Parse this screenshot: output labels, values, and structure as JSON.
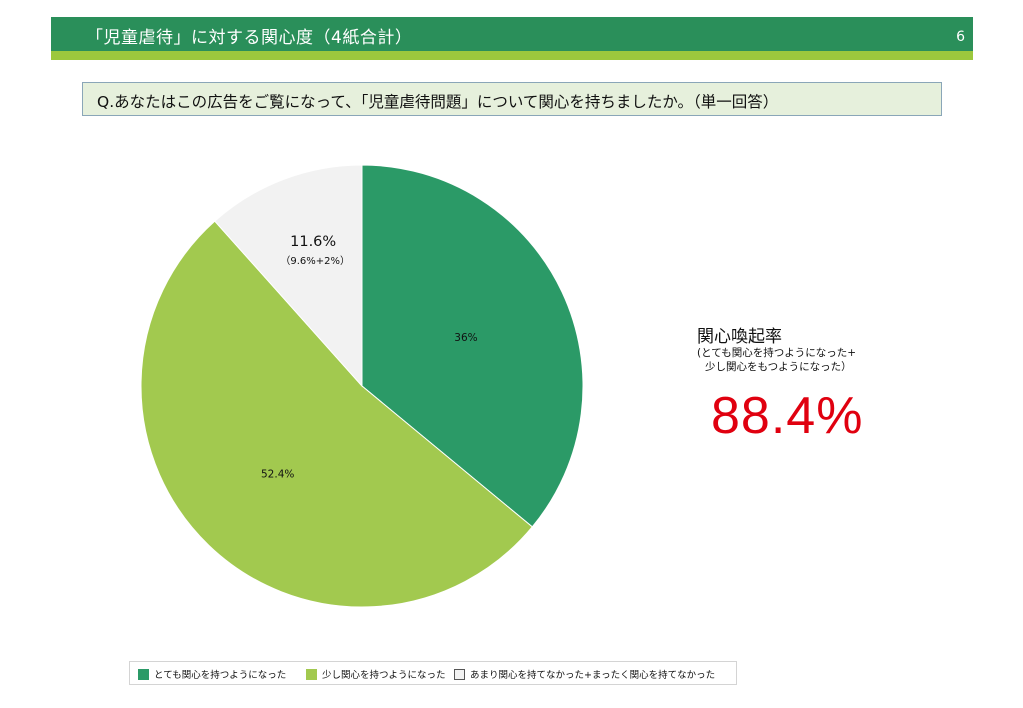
{
  "header": {
    "title": "「児童虐待」に対する関心度（4紙合計）",
    "page_number": "6"
  },
  "question": {
    "text": "Q.あなたはこの広告をご覧になって、「児童虐待問題」について関心を持ちましたか。（単一回答）"
  },
  "kpi": {
    "title": "関心喚起率",
    "note_line1": "(とても関心を持つようになった+",
    "note_line2": "少し関心をもつようになった）",
    "value": "88.4%"
  },
  "colors": {
    "header_green": "#2a8f5a",
    "header_lime": "#9cc83d",
    "slice_dark_green": "#2b9a67",
    "slice_light_green": "#a2c94f",
    "slice_grey": "#f2f2f2",
    "kpi_red": "#e0000f"
  },
  "chart_data": {
    "type": "pie",
    "categories": [
      "とても関心を持つようになった",
      "少し関心を持つようになった",
      "あまり関心を持てなかった+まったく関心を持てなかった"
    ],
    "values": [
      36,
      52.4,
      11.6
    ],
    "data_labels": [
      "36%",
      "52.4%",
      "11.6%"
    ],
    "data_sublabels": [
      "",
      "",
      "（9.6%+2%）"
    ],
    "colors": [
      "#2b9a67",
      "#a2c94f",
      "#f2f2f2"
    ],
    "start_angle_deg": 0,
    "direction": "clockwise",
    "legend_position": "bottom"
  }
}
